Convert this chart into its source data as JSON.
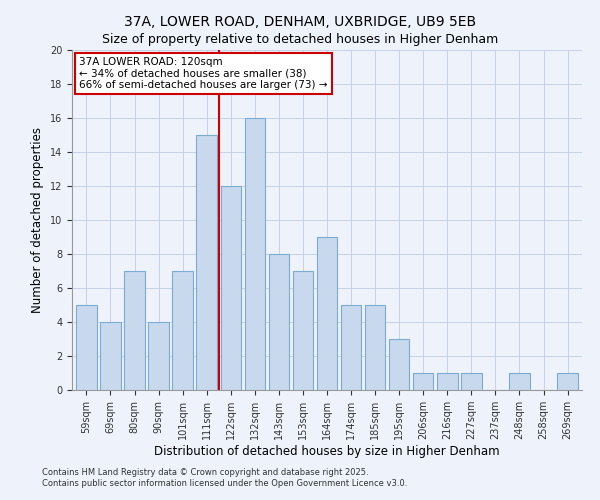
{
  "title": "37A, LOWER ROAD, DENHAM, UXBRIDGE, UB9 5EB",
  "subtitle": "Size of property relative to detached houses in Higher Denham",
  "xlabel": "Distribution of detached houses by size in Higher Denham",
  "ylabel": "Number of detached properties",
  "categories": [
    "59sqm",
    "69sqm",
    "80sqm",
    "90sqm",
    "101sqm",
    "111sqm",
    "122sqm",
    "132sqm",
    "143sqm",
    "153sqm",
    "164sqm",
    "174sqm",
    "185sqm",
    "195sqm",
    "206sqm",
    "216sqm",
    "227sqm",
    "237sqm",
    "248sqm",
    "258sqm",
    "269sqm"
  ],
  "values": [
    5,
    4,
    7,
    4,
    7,
    15,
    12,
    16,
    8,
    7,
    9,
    5,
    5,
    3,
    1,
    1,
    1,
    0,
    1,
    0,
    1
  ],
  "bar_color": "#c8d8ed",
  "bar_edge_color": "#7aadd4",
  "bar_width": 0.85,
  "vline_x": 5.5,
  "vline_color": "#cc0000",
  "ylim": [
    0,
    20
  ],
  "yticks": [
    0,
    2,
    4,
    6,
    8,
    10,
    12,
    14,
    16,
    18,
    20
  ],
  "annotation_title": "37A LOWER ROAD: 120sqm",
  "annotation_line1": "← 34% of detached houses are smaller (38)",
  "annotation_line2": "66% of semi-detached houses are larger (73) →",
  "annotation_box_color": "#ffffff",
  "annotation_box_edge": "#cc0000",
  "bg_color": "#eef2fb",
  "grid_color": "#c5d2e8",
  "footer1": "Contains HM Land Registry data © Crown copyright and database right 2025.",
  "footer2": "Contains public sector information licensed under the Open Government Licence v3.0."
}
